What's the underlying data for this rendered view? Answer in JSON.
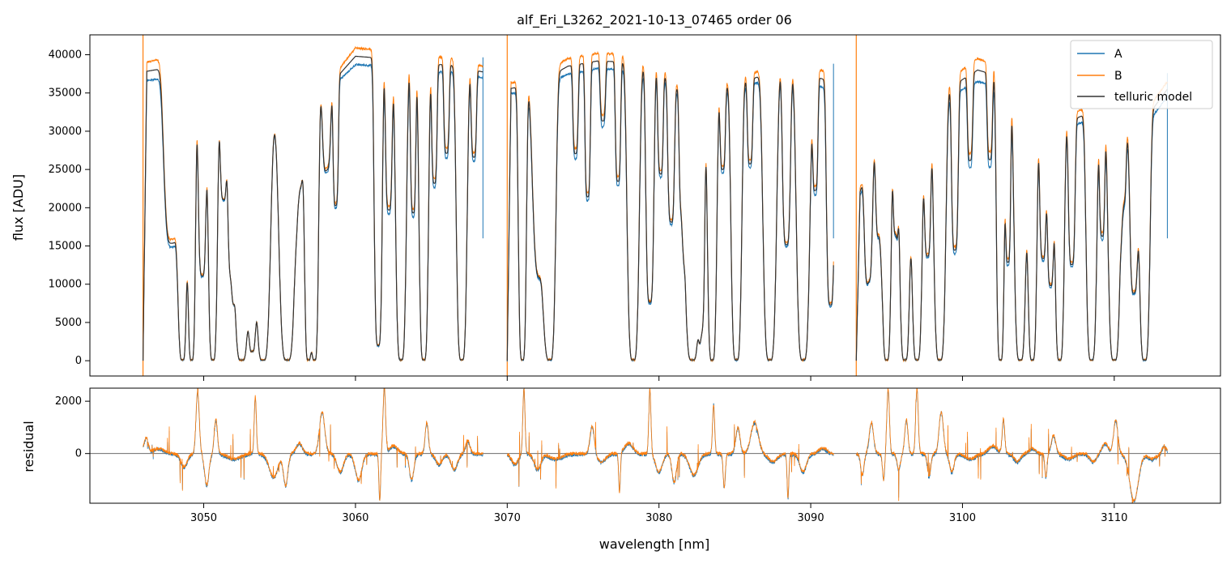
{
  "chart_data": {
    "title": "alf_Eri_L3262_2021-10-13_07465  order 06",
    "xlabel": "wavelength [nm]",
    "xlim": [
      3042.5,
      3117.0
    ],
    "xticks": [
      3050,
      3060,
      3070,
      3080,
      3090,
      3100,
      3110
    ],
    "colors": {
      "A": "#1f77b4",
      "B": "#ff7f0e",
      "telluric": "#333333",
      "zero_line": "#555555"
    },
    "panels": [
      {
        "id": "flux",
        "type": "line",
        "ylabel": "flux [ADU]",
        "ylim": [
          -2000,
          42600
        ],
        "yticks": [
          0,
          5000,
          10000,
          15000,
          20000,
          25000,
          30000,
          35000,
          40000
        ],
        "legend": {
          "position": "top-right",
          "entries": [
            "A",
            "B",
            "telluric model"
          ]
        },
        "segments": [
          {
            "start": 3046.0,
            "end": 3068.4,
            "contA": [
              [
                3046.0,
                36500
              ],
              [
                3048.5,
                37400
              ],
              [
                3051,
                35500
              ],
              [
                3054,
                30200
              ],
              [
                3057,
                33000
              ],
              [
                3060,
                38700
              ],
              [
                3062,
                38500
              ],
              [
                3064,
                37500
              ],
              [
                3066,
                37800
              ],
              [
                3068.4,
                37000
              ]
            ],
            "contB": [
              [
                3046.0,
                39000
              ],
              [
                3048.5,
                39800
              ],
              [
                3051,
                35800
              ],
              [
                3054,
                30500
              ],
              [
                3057,
                33200
              ],
              [
                3060,
                40900
              ],
              [
                3062,
                40500
              ],
              [
                3064,
                39600
              ],
              [
                3066,
                39700
              ],
              [
                3068.4,
                38500
              ]
            ]
          },
          {
            "start": 3070.0,
            "end": 3091.5,
            "contA": [
              [
                3070,
                34800
              ],
              [
                3072,
                35500
              ],
              [
                3074,
                37500
              ],
              [
                3076,
                38200
              ],
              [
                3078,
                38000
              ],
              [
                3080,
                37000
              ],
              [
                3082,
                33500
              ],
              [
                3084,
                35000
              ],
              [
                3086,
                36000
              ],
              [
                3088,
                37500
              ],
              [
                3090,
                36500
              ],
              [
                3091.5,
                35000
              ]
            ],
            "contB": [
              [
                3070,
                36200
              ],
              [
                3072,
                37000
              ],
              [
                3074,
                39500
              ],
              [
                3076,
                40200
              ],
              [
                3078,
                40000
              ],
              [
                3080,
                38500
              ],
              [
                3082,
                34500
              ],
              [
                3084,
                36200
              ],
              [
                3086,
                37500
              ],
              [
                3088,
                38700
              ],
              [
                3090,
                38200
              ],
              [
                3091.5,
                37700
              ]
            ]
          },
          {
            "start": 3093.0,
            "end": 3113.5,
            "contA": [
              [
                3093,
                20000
              ],
              [
                3095,
                32500
              ],
              [
                3097,
                33000
              ],
              [
                3099,
                34500
              ],
              [
                3101,
                36500
              ],
              [
                3103,
                35500
              ],
              [
                3105,
                33000
              ],
              [
                3107,
                30500
              ],
              [
                3109,
                32000
              ],
              [
                3111,
                28000
              ],
              [
                3113.5,
                34500
              ]
            ],
            "contB": [
              [
                3093,
                21000
              ],
              [
                3095,
                33500
              ],
              [
                3097,
                34000
              ],
              [
                3099,
                36500
              ],
              [
                3101,
                39500
              ],
              [
                3103,
                38200
              ],
              [
                3105,
                34500
              ],
              [
                3107,
                32000
              ],
              [
                3109,
                34000
              ],
              [
                3111,
                29500
              ],
              [
                3113.5,
                36500
              ]
            ]
          }
        ],
        "lines": [
          [
            3047.9,
            0.6,
            0.6
          ],
          [
            3048.6,
            1.0,
            0.35
          ],
          [
            3049.2,
            1.0,
            0.3
          ],
          [
            3049.9,
            0.7,
            0.3
          ],
          [
            3050.6,
            1.0,
            0.35
          ],
          [
            3051.3,
            0.4,
            0.25
          ],
          [
            3051.8,
            0.65,
            0.25
          ],
          [
            3052.5,
            1.0,
            0.6
          ],
          [
            3053.2,
            0.95,
            0.3
          ],
          [
            3053.9,
            1.0,
            0.55
          ],
          [
            3055.5,
            1.0,
            0.6
          ],
          [
            3056.3,
            0.3,
            0.3
          ],
          [
            3056.9,
            1.0,
            0.3
          ],
          [
            3057.3,
            1.0,
            0.3
          ],
          [
            3058.1,
            0.3,
            0.3
          ],
          [
            3058.7,
            0.45,
            0.2
          ],
          [
            3061.5,
            0.95,
            0.3
          ],
          [
            3062.2,
            0.5,
            0.25
          ],
          [
            3063.0,
            1.0,
            0.4
          ],
          [
            3063.8,
            0.5,
            0.2
          ],
          [
            3064.5,
            1.0,
            0.35
          ],
          [
            3065.2,
            0.4,
            0.2
          ],
          [
            3066.0,
            0.3,
            0.2
          ],
          [
            3067.0,
            1.0,
            0.4
          ],
          [
            3067.8,
            0.3,
            0.2
          ],
          [
            3071.0,
            1.0,
            0.3
          ],
          [
            3072.2,
            0.7,
            0.6
          ],
          [
            3072.8,
            1.0,
            0.45
          ],
          [
            3074.5,
            0.3,
            0.2
          ],
          [
            3075.3,
            0.45,
            0.2
          ],
          [
            3076.3,
            0.2,
            0.2
          ],
          [
            3077.3,
            0.4,
            0.2
          ],
          [
            3078.3,
            1.0,
            0.45
          ],
          [
            3079.4,
            0.8,
            0.3
          ],
          [
            3080.1,
            0.35,
            0.2
          ],
          [
            3080.8,
            0.5,
            0.25
          ],
          [
            3081.5,
            0.4,
            0.2
          ],
          [
            3082.2,
            1.0,
            0.6
          ],
          [
            3082.8,
            0.85,
            0.25
          ],
          [
            3083.5,
            1.0,
            0.35
          ],
          [
            3084.2,
            0.3,
            0.2
          ],
          [
            3085.1,
            1.0,
            0.4
          ],
          [
            3086.0,
            0.3,
            0.2
          ],
          [
            3087.3,
            1.0,
            0.5
          ],
          [
            3088.4,
            0.6,
            0.3
          ],
          [
            3089.5,
            1.0,
            0.5
          ],
          [
            3090.3,
            0.4,
            0.2
          ],
          [
            3091.3,
            0.8,
            0.3
          ],
          [
            3093.8,
            0.6,
            0.3
          ],
          [
            3094.5,
            0.45,
            0.25
          ],
          [
            3095.0,
            1.0,
            0.35
          ],
          [
            3095.6,
            0.5,
            0.2
          ],
          [
            3096.2,
            1.0,
            0.4
          ],
          [
            3097.0,
            1.0,
            0.4
          ],
          [
            3097.7,
            0.6,
            0.25
          ],
          [
            3098.5,
            1.0,
            0.45
          ],
          [
            3099.5,
            0.6,
            0.25
          ],
          [
            3100.5,
            0.3,
            0.2
          ],
          [
            3101.8,
            0.3,
            0.2
          ],
          [
            3102.5,
            1.0,
            0.3
          ],
          [
            3103.0,
            0.65,
            0.2
          ],
          [
            3103.8,
            1.0,
            0.45
          ],
          [
            3104.6,
            1.0,
            0.35
          ],
          [
            3105.3,
            0.6,
            0.25
          ],
          [
            3105.8,
            0.7,
            0.25
          ],
          [
            3106.4,
            1.0,
            0.35
          ],
          [
            3107.2,
            0.6,
            0.25
          ],
          [
            3108.5,
            1.0,
            0.4
          ],
          [
            3109.2,
            0.5,
            0.2
          ],
          [
            3110.0,
            1.0,
            0.45
          ],
          [
            3110.6,
            0.3,
            0.2
          ],
          [
            3111.3,
            0.7,
            0.3
          ],
          [
            3112.0,
            1.0,
            0.4
          ]
        ]
      },
      {
        "id": "residual",
        "type": "line",
        "ylabel": "residual",
        "ylim": [
          -1900,
          2500
        ],
        "yticks": [
          0,
          2000
        ],
        "segments_x": [
          [
            3046.0,
            3068.4
          ],
          [
            3070.0,
            3091.5
          ],
          [
            3093.0,
            3113.5
          ]
        ],
        "features": [
          [
            3046.2,
            600,
            0.2
          ],
          [
            3047.0,
            200,
            0.5
          ],
          [
            3048.7,
            -500,
            0.3
          ],
          [
            3049.6,
            2400,
            0.15
          ],
          [
            3050.2,
            -1200,
            0.2
          ],
          [
            3050.8,
            1300,
            0.15
          ],
          [
            3052.0,
            -200,
            0.6
          ],
          [
            3053.4,
            2200,
            0.1
          ],
          [
            3054.6,
            -900,
            0.4
          ],
          [
            3055.4,
            -1200,
            0.2
          ],
          [
            3056.3,
            400,
            0.3
          ],
          [
            3057.8,
            1600,
            0.25
          ],
          [
            3059.0,
            -700,
            0.3
          ],
          [
            3060.2,
            -1000,
            0.3
          ],
          [
            3061.6,
            -1800,
            0.08
          ],
          [
            3061.9,
            2500,
            0.12
          ],
          [
            3062.5,
            300,
            0.4
          ],
          [
            3063.7,
            -1000,
            0.2
          ],
          [
            3064.7,
            1200,
            0.15
          ],
          [
            3065.5,
            -400,
            0.3
          ],
          [
            3066.5,
            -600,
            0.3
          ],
          [
            3067.4,
            500,
            0.2
          ],
          [
            3070.5,
            -400,
            0.3
          ],
          [
            3071.1,
            2500,
            0.1
          ],
          [
            3072.0,
            -600,
            0.3
          ],
          [
            3073.2,
            -200,
            0.6
          ],
          [
            3075.6,
            1100,
            0.2
          ],
          [
            3076.2,
            -300,
            0.4
          ],
          [
            3077.4,
            -1500,
            0.08
          ],
          [
            3078.0,
            400,
            0.4
          ],
          [
            3079.4,
            2500,
            0.1
          ],
          [
            3080.0,
            -700,
            0.3
          ],
          [
            3081.0,
            -1100,
            0.2
          ],
          [
            3082.3,
            -800,
            0.4
          ],
          [
            3083.6,
            1900,
            0.1
          ],
          [
            3084.3,
            -1300,
            0.1
          ],
          [
            3085.2,
            1000,
            0.2
          ],
          [
            3086.3,
            1200,
            0.35
          ],
          [
            3087.5,
            -300,
            0.4
          ],
          [
            3088.5,
            -1700,
            0.08
          ],
          [
            3089.5,
            -700,
            0.3
          ],
          [
            3090.8,
            200,
            0.4
          ],
          [
            3093.4,
            -800,
            0.15
          ],
          [
            3094.0,
            1200,
            0.2
          ],
          [
            3094.8,
            -1000,
            0.1
          ],
          [
            3095.1,
            2500,
            0.12
          ],
          [
            3095.8,
            -600,
            0.15
          ],
          [
            3096.3,
            1300,
            0.15
          ],
          [
            3097.0,
            2500,
            0.12
          ],
          [
            3097.8,
            -900,
            0.15
          ],
          [
            3098.6,
            1600,
            0.2
          ],
          [
            3099.3,
            -700,
            0.2
          ],
          [
            3100.5,
            -200,
            0.5
          ],
          [
            3102.0,
            300,
            0.4
          ],
          [
            3102.7,
            1300,
            0.12
          ],
          [
            3103.6,
            -300,
            0.3
          ],
          [
            3104.6,
            200,
            0.3
          ],
          [
            3105.5,
            -900,
            0.1
          ],
          [
            3106.0,
            700,
            0.2
          ],
          [
            3107.0,
            -200,
            0.4
          ],
          [
            3108.6,
            -300,
            0.3
          ],
          [
            3109.4,
            400,
            0.3
          ],
          [
            3110.1,
            1300,
            0.2
          ],
          [
            3111.3,
            -1800,
            0.4
          ],
          [
            3112.5,
            -200,
            0.4
          ],
          [
            3113.3,
            300,
            0.2
          ]
        ]
      }
    ]
  }
}
